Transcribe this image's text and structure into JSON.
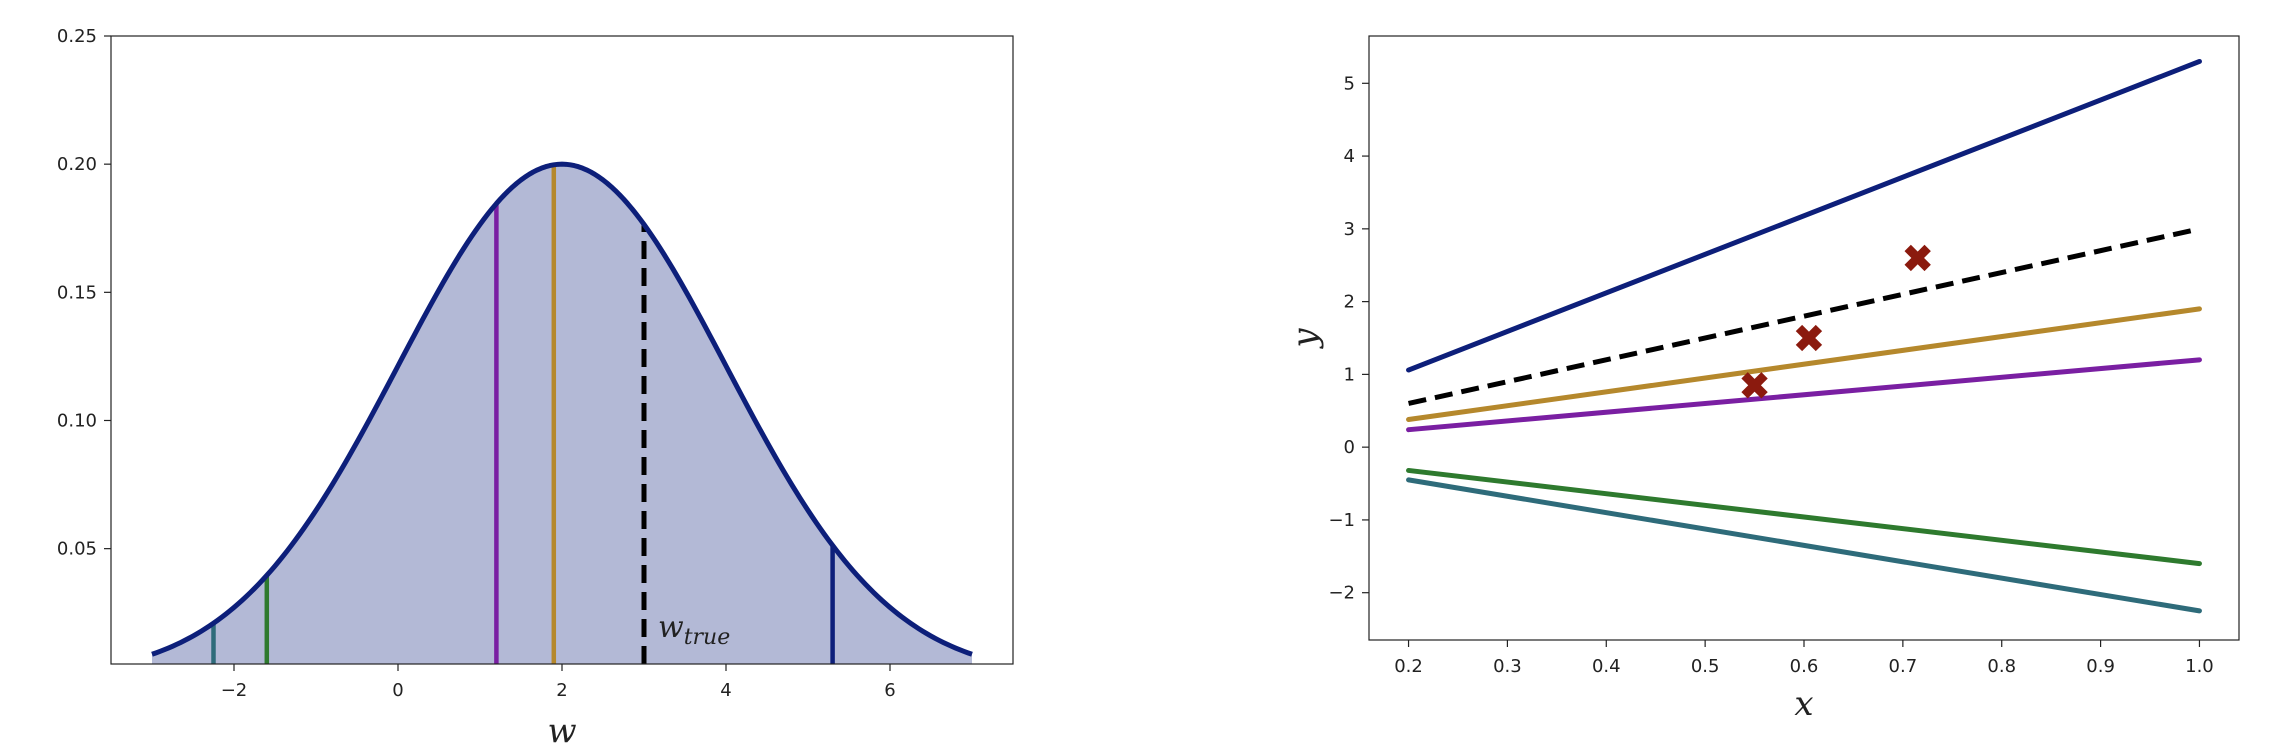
{
  "chart_data": [
    {
      "type": "line",
      "title": "",
      "xlabel": "w",
      "ylabel": "",
      "xlim": [
        -3.5,
        7.5
      ],
      "ylim": [
        0.005,
        0.25
      ],
      "xticks": [
        -2,
        0,
        2,
        4,
        6
      ],
      "xtick_labels": [
        "−2",
        "0",
        "2",
        "4",
        "6"
      ],
      "yticks": [
        0.05,
        0.1,
        0.15,
        0.2,
        0.25
      ],
      "ytick_labels": [
        "0.05",
        "0.10",
        "0.15",
        "0.20",
        "0.25"
      ],
      "grid": false,
      "series": [
        {
          "kind": "density",
          "distribution": "gaussian",
          "mean": 2,
          "std": 2,
          "x_range": [
            -3,
            7
          ],
          "color": "#0d1f7a",
          "fill": "#b3b9d6"
        }
      ],
      "markers": [
        {
          "x": -2.25,
          "color": "#2e6b7a"
        },
        {
          "x": -1.6,
          "color": "#2e7a2e"
        },
        {
          "x": 1.2,
          "color": "#7a1fa2"
        },
        {
          "x": 1.9,
          "color": "#b5882c"
        },
        {
          "x": 5.3,
          "color": "#0d1f7a"
        }
      ],
      "reference": {
        "x": 3,
        "style": "dashed",
        "color": "#000000",
        "label": "w_true",
        "label_base": "w",
        "label_sub": "true"
      }
    },
    {
      "type": "line",
      "title": "",
      "xlabel": "x",
      "ylabel": "y",
      "xlim": [
        0.16,
        1.04
      ],
      "ylim": [
        -2.65,
        5.65
      ],
      "xticks": [
        0.2,
        0.3,
        0.4,
        0.5,
        0.6,
        0.7,
        0.8,
        0.9,
        1.0
      ],
      "xtick_labels": [
        "0.2",
        "0.3",
        "0.4",
        "0.5",
        "0.6",
        "0.7",
        "0.8",
        "0.9",
        "1.0"
      ],
      "yticks": [
        -2,
        -1,
        0,
        1,
        2,
        3,
        4,
        5
      ],
      "ytick_labels": [
        "−2",
        "−1",
        "0",
        "1",
        "2",
        "3",
        "4",
        "5"
      ],
      "grid": false,
      "series": [
        {
          "x": [
            0.2,
            1.0
          ],
          "y": [
            1.06,
            5.3
          ],
          "color": "#0d1f7a",
          "style": "solid"
        },
        {
          "x": [
            0.2,
            1.0
          ],
          "y": [
            0.6,
            3.0
          ],
          "color": "#000000",
          "style": "dashed"
        },
        {
          "x": [
            0.2,
            1.0
          ],
          "y": [
            0.38,
            1.9
          ],
          "color": "#b5882c",
          "style": "solid"
        },
        {
          "x": [
            0.2,
            1.0
          ],
          "y": [
            0.24,
            1.2
          ],
          "color": "#7a1fa2",
          "style": "solid"
        },
        {
          "x": [
            0.2,
            1.0
          ],
          "y": [
            -0.32,
            -1.6
          ],
          "color": "#2e7a2e",
          "style": "solid"
        },
        {
          "x": [
            0.2,
            1.0
          ],
          "y": [
            -0.45,
            -2.25
          ],
          "color": "#2e6b7a",
          "style": "solid"
        }
      ],
      "points": [
        {
          "x": 0.55,
          "y": 0.85
        },
        {
          "x": 0.605,
          "y": 1.5
        },
        {
          "x": 0.715,
          "y": 2.6
        }
      ],
      "point_color": "#8b1a0e"
    }
  ]
}
